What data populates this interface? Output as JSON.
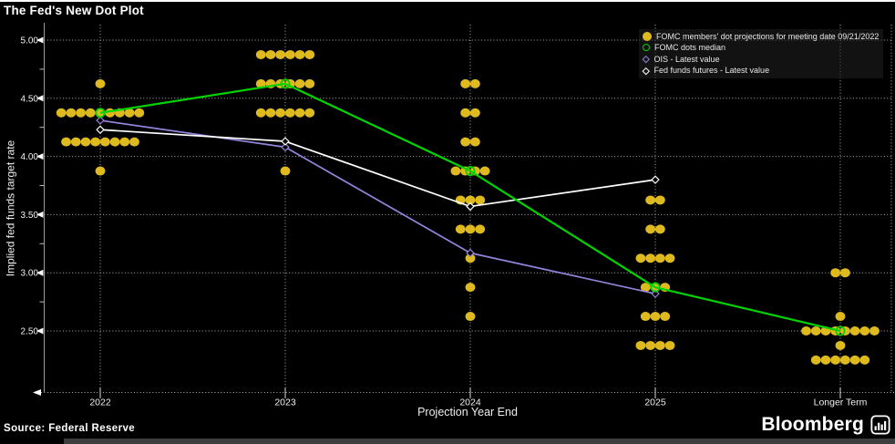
{
  "page": {
    "title": "The Fed's New Dot Plot",
    "source": "Source: Federal Reserve",
    "brand": "Bloomberg"
  },
  "legend": {
    "items": [
      {
        "marker": "yellow-filled-dot",
        "label": "FOMC members' dot projections for meeting date 09/21/2022"
      },
      {
        "marker": "green-open-circle",
        "label": "FOMC dots median"
      },
      {
        "marker": "purple-open-diamond",
        "label": "OIS - Latest value"
      },
      {
        "marker": "white-open-diamond",
        "label": "Fed funds futures - Latest value"
      }
    ]
  },
  "chart_data": {
    "type": "scatter",
    "title": "The Fed's New Dot Plot",
    "xlabel": "Projection Year End",
    "ylabel": "Implied fed funds target rate",
    "categories": [
      "2022",
      "2023",
      "2024",
      "2025",
      "Longer Term"
    ],
    "y_ticks": [
      5.0,
      4.5,
      4.0,
      3.5,
      3.0,
      2.5
    ],
    "y_minor_step": 0.25,
    "ylim": [
      1.97,
      5.05
    ],
    "grid": "dotted",
    "legend_position": "top-right",
    "colors": {
      "dots": "#dfba1e",
      "median": "#00d300",
      "ois": "#9683db",
      "futures": "#ffffff",
      "background": "#000000",
      "gridline": "#cfcfcf"
    },
    "dot_projections": [
      {
        "category": "2022",
        "dots": [
          {
            "rate": 4.625,
            "count": 1
          },
          {
            "rate": 4.375,
            "count": 9
          },
          {
            "rate": 4.125,
            "count": 8
          },
          {
            "rate": 3.875,
            "count": 1
          }
        ]
      },
      {
        "category": "2023",
        "dots": [
          {
            "rate": 4.875,
            "count": 6
          },
          {
            "rate": 4.625,
            "count": 6
          },
          {
            "rate": 4.375,
            "count": 6
          },
          {
            "rate": 3.875,
            "count": 1
          }
        ]
      },
      {
        "category": "2024",
        "dots": [
          {
            "rate": 4.625,
            "count": 2
          },
          {
            "rate": 4.375,
            "count": 2
          },
          {
            "rate": 4.125,
            "count": 2
          },
          {
            "rate": 3.875,
            "count": 4
          },
          {
            "rate": 3.625,
            "count": 3
          },
          {
            "rate": 3.375,
            "count": 3
          },
          {
            "rate": 3.125,
            "count": 1
          },
          {
            "rate": 2.875,
            "count": 1
          },
          {
            "rate": 2.625,
            "count": 1
          }
        ]
      },
      {
        "category": "2025",
        "dots": [
          {
            "rate": 3.625,
            "count": 2
          },
          {
            "rate": 3.375,
            "count": 2
          },
          {
            "rate": 3.125,
            "count": 4
          },
          {
            "rate": 2.875,
            "count": 3
          },
          {
            "rate": 2.625,
            "count": 3
          },
          {
            "rate": 2.375,
            "count": 4
          }
        ]
      },
      {
        "category": "Longer Term",
        "dots": [
          {
            "rate": 3.0,
            "count": 2
          },
          {
            "rate": 2.625,
            "count": 1
          },
          {
            "rate": 2.5,
            "count": 8
          },
          {
            "rate": 2.375,
            "count": 1
          },
          {
            "rate": 2.25,
            "count": 6
          }
        ]
      }
    ],
    "series": [
      {
        "name": "FOMC dots median",
        "marker": "open-circle",
        "color": "#00d300",
        "x": [
          "2022",
          "2023",
          "2024",
          "2025",
          "Longer Term"
        ],
        "values": [
          4.375,
          4.625,
          3.875,
          2.875,
          2.5
        ]
      },
      {
        "name": "OIS - Latest value",
        "marker": "open-diamond",
        "color": "#9683db",
        "x": [
          "2022",
          "2023",
          "2024",
          "2025"
        ],
        "values": [
          4.31,
          4.08,
          3.17,
          2.82
        ]
      },
      {
        "name": "Fed funds futures - Latest value",
        "marker": "open-diamond",
        "color": "#ffffff",
        "x": [
          "2022",
          "2023",
          "2024",
          "2025"
        ],
        "values": [
          4.23,
          4.13,
          3.57,
          3.8
        ]
      }
    ]
  }
}
